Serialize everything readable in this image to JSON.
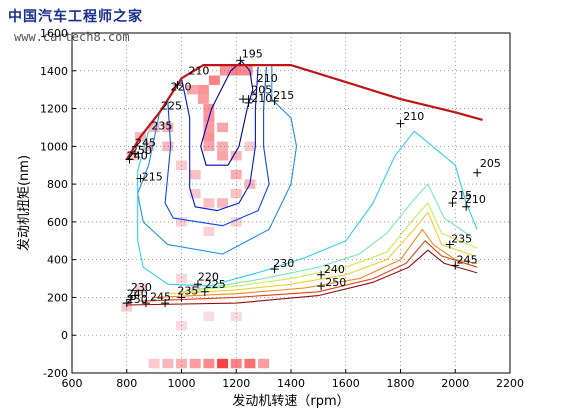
{
  "watermark": {
    "site_cn": "中国汽车工程师之家",
    "url": "www.cartech8.com"
  },
  "chart_data": {
    "type": "contour",
    "xlabel": "发动机转速（rpm）",
    "ylabel": "发动机扭矩(nm)",
    "xlim": [
      600,
      2200
    ],
    "ylim": [
      -200,
      1600
    ],
    "xticks": [
      600,
      800,
      1000,
      1200,
      1400,
      1600,
      1800,
      2000,
      2200
    ],
    "yticks": [
      -200,
      0,
      200,
      400,
      600,
      800,
      1000,
      1200,
      1400,
      1600
    ],
    "grid": "dotted",
    "max_torque_line": {
      "color": "#c0141b",
      "points": [
        [
          800,
          930
        ],
        [
          850,
          1050
        ],
        [
          920,
          1180
        ],
        [
          1000,
          1360
        ],
        [
          1080,
          1430
        ],
        [
          1400,
          1430
        ],
        [
          1600,
          1340
        ],
        [
          1800,
          1250
        ],
        [
          2000,
          1180
        ],
        [
          2100,
          1140
        ]
      ]
    },
    "contour_levels": [
      {
        "level": 195,
        "color": "#0000b0",
        "points": [
          [
            1220,
            1450
          ],
          [
            1250,
            1400
          ],
          [
            1260,
            1300
          ],
          [
            1240,
            1200
          ],
          [
            1210,
            1000
          ],
          [
            1170,
            900
          ],
          [
            1090,
            900
          ],
          [
            1070,
            1000
          ],
          [
            1110,
            1200
          ],
          [
            1180,
            1400
          ],
          [
            1220,
            1450
          ]
        ]
      },
      {
        "level": 205,
        "color": "#0014d8",
        "points": [
          [
            1000,
            1360
          ],
          [
            1030,
            1150
          ],
          [
            1030,
            950
          ],
          [
            1030,
            780
          ],
          [
            1050,
            680
          ],
          [
            1130,
            660
          ],
          [
            1210,
            700
          ],
          [
            1250,
            800
          ],
          [
            1270,
            1000
          ],
          [
            1270,
            1200
          ],
          [
            1280,
            1420
          ]
        ]
      },
      {
        "level": 210,
        "color": "#0a46ea",
        "points": [
          [
            950,
            1240
          ],
          [
            960,
            1000
          ],
          [
            940,
            700
          ],
          [
            970,
            620
          ],
          [
            1150,
            580
          ],
          [
            1280,
            660
          ],
          [
            1320,
            800
          ],
          [
            1300,
            1000
          ],
          [
            1300,
            1200
          ],
          [
            1310,
            1420
          ]
        ]
      },
      {
        "level": 215,
        "color": "#1c8ef0",
        "points": [
          [
            920,
            1180
          ],
          [
            880,
            900
          ],
          [
            840,
            750
          ],
          [
            860,
            600
          ],
          [
            950,
            480
          ],
          [
            1150,
            430
          ],
          [
            1320,
            560
          ],
          [
            1400,
            800
          ],
          [
            1420,
            1000
          ],
          [
            1400,
            1150
          ],
          [
            1330,
            1250
          ],
          [
            1330,
            1430
          ]
        ]
      },
      {
        "level": 220,
        "color": "#2fd0f0",
        "points": [
          [
            880,
            1080
          ],
          [
            840,
            870
          ],
          [
            840,
            500
          ],
          [
            860,
            360
          ],
          [
            950,
            270
          ],
          [
            1100,
            260
          ],
          [
            1300,
            340
          ],
          [
            1450,
            410
          ],
          [
            1600,
            500
          ],
          [
            1700,
            700
          ],
          [
            1780,
            950
          ],
          [
            1850,
            1080
          ],
          [
            2000,
            900
          ],
          [
            2040,
            700
          ],
          [
            2080,
            560
          ]
        ]
      },
      {
        "level": 225,
        "color": "#7ce8b4",
        "points": [
          [
            1050,
            240
          ],
          [
            1300,
            300
          ],
          [
            1500,
            360
          ],
          [
            1650,
            430
          ],
          [
            1750,
            540
          ],
          [
            1850,
            720
          ],
          [
            1900,
            800
          ],
          [
            1960,
            620
          ],
          [
            2060,
            520
          ]
        ]
      },
      {
        "level": 230,
        "color": "#c8f050",
        "points": [
          [
            1000,
            230
          ],
          [
            1200,
            260
          ],
          [
            1400,
            300
          ],
          [
            1600,
            360
          ],
          [
            1750,
            440
          ],
          [
            1850,
            620
          ],
          [
            1900,
            700
          ],
          [
            1950,
            540
          ],
          [
            2080,
            460
          ]
        ]
      },
      {
        "level": 235,
        "color": "#f0d030",
        "points": [
          [
            960,
            220
          ],
          [
            1200,
            240
          ],
          [
            1400,
            270
          ],
          [
            1600,
            320
          ],
          [
            1750,
            400
          ],
          [
            1850,
            560
          ],
          [
            1900,
            650
          ],
          [
            1950,
            480
          ],
          [
            2070,
            420
          ]
        ]
      },
      {
        "level": 240,
        "color": "#f08a20",
        "points": [
          [
            900,
            200
          ],
          [
            1200,
            220
          ],
          [
            1450,
            250
          ],
          [
            1650,
            300
          ],
          [
            1800,
            400
          ],
          [
            1880,
            560
          ],
          [
            1920,
            480
          ],
          [
            2000,
            400
          ],
          [
            2080,
            380
          ]
        ]
      },
      {
        "level": 245,
        "color": "#d8421a",
        "points": [
          [
            850,
            180
          ],
          [
            1200,
            200
          ],
          [
            1500,
            230
          ],
          [
            1700,
            300
          ],
          [
            1820,
            380
          ],
          [
            1890,
            500
          ],
          [
            1950,
            420
          ],
          [
            2080,
            360
          ]
        ]
      },
      {
        "level": 250,
        "color": "#901010",
        "points": [
          [
            800,
            160
          ],
          [
            1200,
            170
          ],
          [
            1500,
            210
          ],
          [
            1700,
            280
          ],
          [
            1830,
            360
          ],
          [
            1900,
            450
          ],
          [
            1960,
            380
          ],
          [
            2080,
            330
          ]
        ]
      }
    ],
    "labels": [
      {
        "text": "195",
        "x": 1220,
        "y": 1470
      },
      {
        "text": "210",
        "x": 1025,
        "y": 1380
      },
      {
        "text": "210",
        "x": 1275,
        "y": 1340
      },
      {
        "text": "205",
        "x": 1255,
        "y": 1280
      },
      {
        "text": "210",
        "x": 1255,
        "y": 1235
      },
      {
        "text": "215",
        "x": 1335,
        "y": 1250
      },
      {
        "text": "220",
        "x": 960,
        "y": 1295
      },
      {
        "text": "225",
        "x": 925,
        "y": 1195
      },
      {
        "text": "235",
        "x": 890,
        "y": 1090
      },
      {
        "text": "245",
        "x": 830,
        "y": 1000
      },
      {
        "text": "250",
        "x": 815,
        "y": 960
      },
      {
        "text": "240",
        "x": 800,
        "y": 930
      },
      {
        "text": "215",
        "x": 855,
        "y": 820
      },
      {
        "text": "210",
        "x": 1810,
        "y": 1140
      },
      {
        "text": "205",
        "x": 2090,
        "y": 890
      },
      {
        "text": "215",
        "x": 1985,
        "y": 720
      },
      {
        "text": "210",
        "x": 2035,
        "y": 700
      },
      {
        "text": "235",
        "x": 1985,
        "y": 490
      },
      {
        "text": "245",
        "x": 2005,
        "y": 380
      },
      {
        "text": "230",
        "x": 1335,
        "y": 360
      },
      {
        "text": "240",
        "x": 1520,
        "y": 330
      },
      {
        "text": "250",
        "x": 1525,
        "y": 260
      },
      {
        "text": "220",
        "x": 1060,
        "y": 290
      },
      {
        "text": "225",
        "x": 1085,
        "y": 250
      },
      {
        "text": "235",
        "x": 985,
        "y": 215
      },
      {
        "text": "245",
        "x": 885,
        "y": 185
      },
      {
        "text": "230",
        "x": 815,
        "y": 235
      },
      {
        "text": "240",
        "x": 800,
        "y": 200
      },
      {
        "text": "250",
        "x": 800,
        "y": 170
      }
    ],
    "markers": [
      [
        1215,
        1455
      ],
      [
        985,
        1325
      ],
      [
        1225,
        1250
      ],
      [
        1245,
        1250
      ],
      [
        1245,
        1230
      ],
      [
        1340,
        1240
      ],
      [
        830,
        960
      ],
      [
        810,
        930
      ],
      [
        850,
        830
      ],
      [
        1800,
        1120
      ],
      [
        2080,
        860
      ],
      [
        1990,
        700
      ],
      [
        2040,
        680
      ],
      [
        1980,
        480
      ],
      [
        2000,
        370
      ],
      [
        1340,
        350
      ],
      [
        1510,
        320
      ],
      [
        1510,
        260
      ],
      [
        1060,
        270
      ],
      [
        1085,
        230
      ],
      [
        1000,
        200
      ],
      [
        940,
        170
      ],
      [
        870,
        170
      ],
      [
        830,
        210
      ],
      [
        815,
        190
      ],
      [
        800,
        170
      ]
    ],
    "heat_cells": [
      {
        "x": 1040,
        "y": 1300,
        "v": 0.4
      },
      {
        "x": 1080,
        "y": 1300,
        "v": 0.5
      },
      {
        "x": 1120,
        "y": 1350,
        "v": 0.6
      },
      {
        "x": 1160,
        "y": 1400,
        "v": 0.5
      },
      {
        "x": 1200,
        "y": 1400,
        "v": 0.6
      },
      {
        "x": 1240,
        "y": 1400,
        "v": 0.55
      },
      {
        "x": 1080,
        "y": 1250,
        "v": 0.45
      },
      {
        "x": 1100,
        "y": 1200,
        "v": 0.5
      },
      {
        "x": 1100,
        "y": 1150,
        "v": 0.5
      },
      {
        "x": 1100,
        "y": 1100,
        "v": 0.45
      },
      {
        "x": 1100,
        "y": 1050,
        "v": 0.5
      },
      {
        "x": 1100,
        "y": 1000,
        "v": 0.4
      },
      {
        "x": 1150,
        "y": 1100,
        "v": 0.4
      },
      {
        "x": 1150,
        "y": 1000,
        "v": 0.35
      },
      {
        "x": 1150,
        "y": 950,
        "v": 0.4
      },
      {
        "x": 1200,
        "y": 950,
        "v": 0.3
      },
      {
        "x": 1200,
        "y": 850,
        "v": 0.35
      },
      {
        "x": 1250,
        "y": 800,
        "v": 0.3
      },
      {
        "x": 1200,
        "y": 750,
        "v": 0.25
      },
      {
        "x": 1150,
        "y": 700,
        "v": 0.3
      },
      {
        "x": 1100,
        "y": 700,
        "v": 0.25
      },
      {
        "x": 1050,
        "y": 750,
        "v": 0.2
      },
      {
        "x": 1050,
        "y": 850,
        "v": 0.25
      },
      {
        "x": 1000,
        "y": 900,
        "v": 0.2
      },
      {
        "x": 950,
        "y": 1000,
        "v": 0.3
      },
      {
        "x": 950,
        "y": 1100,
        "v": 0.35
      },
      {
        "x": 900,
        "y": 1100,
        "v": 0.3
      },
      {
        "x": 880,
        "y": 1000,
        "v": 0.25
      },
      {
        "x": 850,
        "y": 1050,
        "v": 0.3
      },
      {
        "x": 820,
        "y": 950,
        "v": 0.2
      },
      {
        "x": 1000,
        "y": 600,
        "v": 0.15
      },
      {
        "x": 1100,
        "y": 550,
        "v": 0.15
      },
      {
        "x": 1200,
        "y": 600,
        "v": 0.15
      },
      {
        "x": 1250,
        "y": 1000,
        "v": 0.2
      },
      {
        "x": 1000,
        "y": 300,
        "v": 0.12
      },
      {
        "x": 1050,
        "y": 250,
        "v": 0.12
      },
      {
        "x": 850,
        "y": 250,
        "v": 0.15
      },
      {
        "x": 800,
        "y": 150,
        "v": 0.2
      },
      {
        "x": 900,
        "y": -150,
        "v": 0.2
      },
      {
        "x": 950,
        "y": -150,
        "v": 0.3
      },
      {
        "x": 1000,
        "y": -150,
        "v": 0.35
      },
      {
        "x": 1050,
        "y": -150,
        "v": 0.45
      },
      {
        "x": 1100,
        "y": -150,
        "v": 0.55
      },
      {
        "x": 1150,
        "y": -150,
        "v": 0.95
      },
      {
        "x": 1200,
        "y": -150,
        "v": 0.6
      },
      {
        "x": 1250,
        "y": -150,
        "v": 0.7
      },
      {
        "x": 1300,
        "y": -150,
        "v": 0.45
      },
      {
        "x": 1000,
        "y": 50,
        "v": 0.1
      },
      {
        "x": 1100,
        "y": 100,
        "v": 0.1
      },
      {
        "x": 1200,
        "y": 100,
        "v": 0.1
      }
    ]
  }
}
